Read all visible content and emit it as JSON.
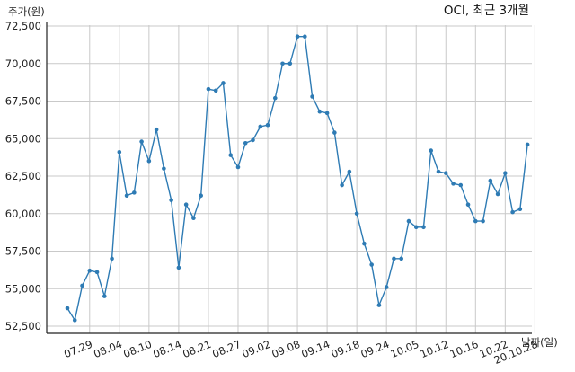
{
  "chart_data": {
    "type": "line",
    "title": "OCI, 최근 3개월",
    "ylabel": "주가(원)",
    "xlabel": "날짜(일)",
    "ylim": [
      52500,
      72500
    ],
    "yticks": [
      52500,
      55000,
      57500,
      60000,
      62500,
      65000,
      67500,
      70000,
      72500
    ],
    "ytick_labels": [
      "52,500",
      "55,000",
      "57,500",
      "60,000",
      "62,500",
      "65,000",
      "67,500",
      "70,000",
      "72,500"
    ],
    "xtick_labels": [
      "07.29",
      "08.04",
      "08.10",
      "08.14",
      "08.21",
      "08.27",
      "09.02",
      "09.08",
      "09.14",
      "09.18",
      "09.24",
      "10.05",
      "10.12",
      "10.16",
      "10.22",
      "20.10.28"
    ],
    "xtick_index": [
      3,
      7,
      11,
      15,
      19,
      23,
      27,
      31,
      35,
      39,
      43,
      47,
      51,
      55,
      59,
      63
    ],
    "grid": true,
    "line_color": "#2e7bb4",
    "series": [
      {
        "values": [
          53700,
          52900,
          55200,
          56200,
          56100,
          54500,
          57000,
          64100,
          61200,
          61400,
          64800,
          63500,
          65600,
          63000,
          60900,
          56400,
          60600,
          59700,
          61200,
          68300,
          68200,
          68700,
          63900,
          63100,
          64700,
          64900,
          65800,
          65900,
          67700,
          70000,
          70000,
          71800,
          71800,
          67800,
          66800,
          66700,
          65400,
          61900,
          62800,
          60000,
          58000,
          56600,
          53900,
          55100,
          57000,
          57000,
          59500,
          59100,
          59100,
          64200,
          62800,
          62700,
          62000,
          61900,
          60600,
          59500,
          59500,
          62200,
          61300,
          62700,
          60100,
          60300,
          64600
        ]
      }
    ]
  }
}
